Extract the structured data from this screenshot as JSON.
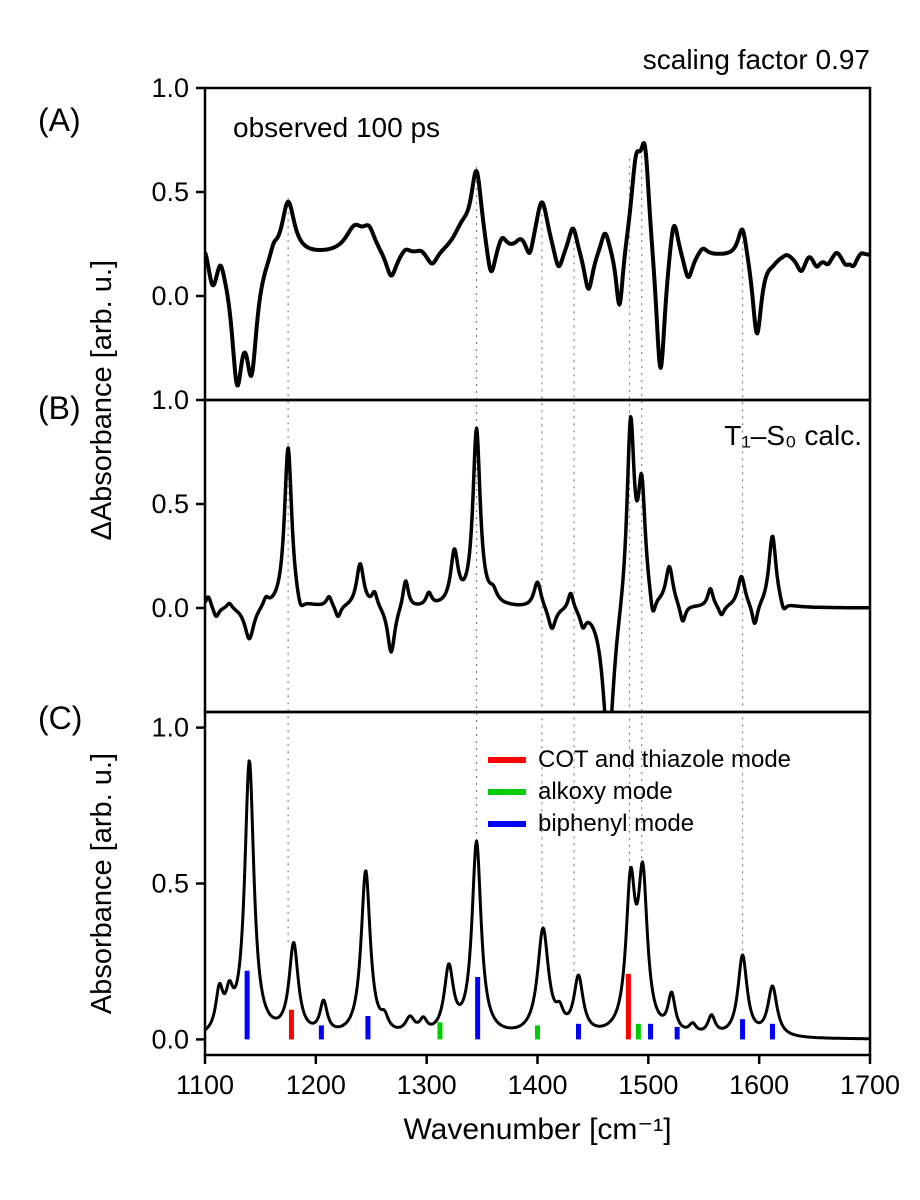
{
  "header": {
    "note": "scaling factor 0.97"
  },
  "chart_data": {
    "type": "line",
    "xlabel": "Wavenumber [cm⁻¹]",
    "ylabel_upper": "ΔAbsorbance [arb. u.]",
    "ylabel_lower": "Absorbance [arb. u.]",
    "x_range": [
      1100,
      1700
    ],
    "x_ticks": [
      1100,
      1200,
      1300,
      1400,
      1500,
      1600,
      1700
    ],
    "colors": {
      "curve": "#000000",
      "red": "#ff0000",
      "green": "#00cc00",
      "blue": "#0000ff",
      "guide": "#808080"
    },
    "guide_lines": [
      {
        "x": 1175,
        "from_a": 0.47,
        "to_c": 0.31
      },
      {
        "x": 1345,
        "from_a": 0.62,
        "to_c": 0.64
      },
      {
        "x": 1404,
        "from_a": 0.46,
        "to_c": 0.36
      },
      {
        "x": 1433,
        "from_a": 0.33,
        "to_c": 0.2
      },
      {
        "x": 1483,
        "from_a": 0.66,
        "to_c": 0.5
      },
      {
        "x": 1494,
        "from_a": 0.74,
        "to_c": 0.52
      },
      {
        "x": 1585,
        "from_a": 0.33,
        "to_c": 0.28
      }
    ],
    "panels": [
      {
        "id": "A",
        "label": "(A)",
        "annotation": "observed 100 ps",
        "ylim": [
          -0.5,
          1.0
        ],
        "y_ticks": [
          0.0,
          0.5,
          1.0
        ],
        "baseline": 0.2,
        "peaks": [
          [
            1100,
            0.08,
            4
          ],
          [
            1107,
            -0.14,
            5
          ],
          [
            1114,
            0.08,
            4
          ],
          [
            1129,
            -0.55,
            6
          ],
          [
            1142,
            -0.5,
            6
          ],
          [
            1162,
            0.05,
            4
          ],
          [
            1175,
            0.27,
            7
          ],
          [
            1235,
            0.12,
            10
          ],
          [
            1248,
            0.1,
            7
          ],
          [
            1268,
            -0.13,
            6
          ],
          [
            1281,
            0.03,
            5
          ],
          [
            1295,
            0.02,
            5
          ],
          [
            1305,
            -0.07,
            6
          ],
          [
            1332,
            0.1,
            10
          ],
          [
            1345,
            0.38,
            6
          ],
          [
            1358,
            -0.18,
            5
          ],
          [
            1368,
            0.07,
            5
          ],
          [
            1385,
            0.05,
            6
          ],
          [
            1393,
            -0.09,
            4
          ],
          [
            1404,
            0.26,
            7
          ],
          [
            1419,
            -0.12,
            5
          ],
          [
            1432,
            0.14,
            5
          ],
          [
            1446,
            -0.2,
            5
          ],
          [
            1461,
            0.12,
            5
          ],
          [
            1474,
            -0.32,
            4
          ],
          [
            1489,
            0.4,
            6
          ],
          [
            1497,
            0.45,
            5
          ],
          [
            1511,
            -0.65,
            5
          ],
          [
            1523,
            0.22,
            5
          ],
          [
            1536,
            -0.13,
            5
          ],
          [
            1549,
            0.04,
            5
          ],
          [
            1585,
            0.17,
            5
          ],
          [
            1598,
            -0.4,
            5
          ],
          [
            1612,
            -0.02,
            5
          ],
          [
            1625,
            0.02,
            5
          ],
          [
            1638,
            -0.08,
            5
          ],
          [
            1645,
            0.03,
            4
          ],
          [
            1652,
            -0.05,
            4
          ],
          [
            1662,
            -0.04,
            4
          ],
          [
            1670,
            0.03,
            4
          ],
          [
            1678,
            -0.04,
            4
          ],
          [
            1685,
            -0.05,
            4
          ],
          [
            1692,
            0.02,
            4
          ]
        ]
      },
      {
        "id": "B",
        "label": "(B)",
        "annotation": "T₁–S₀ calc.",
        "ylim": [
          -0.5,
          1.0
        ],
        "y_ticks": [
          0.0,
          0.5,
          1.0
        ],
        "baseline": 0,
        "peaks": [
          [
            1103,
            0.06,
            3
          ],
          [
            1110,
            -0.05,
            3
          ],
          [
            1122,
            0.03,
            3
          ],
          [
            1140,
            -0.16,
            5
          ],
          [
            1155,
            0.04,
            3
          ],
          [
            1175,
            0.78,
            4
          ],
          [
            1186,
            -0.07,
            4
          ],
          [
            1212,
            0.05,
            3
          ],
          [
            1220,
            -0.06,
            3
          ],
          [
            1240,
            0.21,
            4
          ],
          [
            1253,
            0.07,
            3
          ],
          [
            1268,
            -0.23,
            4
          ],
          [
            1281,
            0.14,
            3
          ],
          [
            1302,
            0.06,
            3
          ],
          [
            1325,
            0.25,
            4
          ],
          [
            1345,
            0.85,
            4
          ],
          [
            1360,
            0.05,
            4
          ],
          [
            1400,
            0.13,
            4
          ],
          [
            1413,
            -0.11,
            4
          ],
          [
            1430,
            0.09,
            3
          ],
          [
            1441,
            -0.07,
            3
          ],
          [
            1464,
            -0.7,
            6
          ],
          [
            1484,
            0.9,
            4
          ],
          [
            1494,
            0.55,
            4
          ],
          [
            1504,
            -0.12,
            3
          ],
          [
            1519,
            0.19,
            4
          ],
          [
            1531,
            -0.09,
            3
          ],
          [
            1556,
            0.09,
            3
          ],
          [
            1566,
            -0.05,
            3
          ],
          [
            1584,
            0.15,
            4
          ],
          [
            1596,
            -0.11,
            3
          ],
          [
            1612,
            0.35,
            4
          ],
          [
            1622,
            -0.05,
            3
          ]
        ]
      },
      {
        "id": "C",
        "label": "(C)",
        "ylim": [
          -0.05,
          1.05
        ],
        "y_ticks": [
          0.0,
          0.5,
          1.0
        ],
        "baseline": 0,
        "peaks": [
          [
            1113,
            0.13,
            4
          ],
          [
            1122,
            0.1,
            4
          ],
          [
            1140,
            0.88,
            5
          ],
          [
            1180,
            0.29,
            5
          ],
          [
            1207,
            0.1,
            4
          ],
          [
            1245,
            0.53,
            5
          ],
          [
            1262,
            0.04,
            4
          ],
          [
            1285,
            0.05,
            5
          ],
          [
            1297,
            0.04,
            4
          ],
          [
            1320,
            0.21,
            5
          ],
          [
            1345,
            0.62,
            5
          ],
          [
            1405,
            0.34,
            6
          ],
          [
            1420,
            0.05,
            4
          ],
          [
            1437,
            0.18,
            5
          ],
          [
            1484,
            0.46,
            5
          ],
          [
            1495,
            0.48,
            5
          ],
          [
            1521,
            0.12,
            4
          ],
          [
            1540,
            0.03,
            4
          ],
          [
            1557,
            0.06,
            4
          ],
          [
            1585,
            0.26,
            5
          ],
          [
            1612,
            0.16,
            5
          ]
        ],
        "sticks": [
          {
            "color_key": "blue",
            "x": 1138,
            "h": 0.22
          },
          {
            "color_key": "blue",
            "x": 1205,
            "h": 0.045
          },
          {
            "color_key": "blue",
            "x": 1247,
            "h": 0.075
          },
          {
            "color_key": "blue",
            "x": 1346,
            "h": 0.2
          },
          {
            "color_key": "blue",
            "x": 1437,
            "h": 0.05
          },
          {
            "color_key": "blue",
            "x": 1502,
            "h": 0.05
          },
          {
            "color_key": "blue",
            "x": 1526,
            "h": 0.04
          },
          {
            "color_key": "blue",
            "x": 1585,
            "h": 0.065
          },
          {
            "color_key": "blue",
            "x": 1612,
            "h": 0.05
          },
          {
            "color_key": "red",
            "x": 1178,
            "h": 0.095
          },
          {
            "color_key": "red",
            "x": 1482,
            "h": 0.21
          },
          {
            "color_key": "green",
            "x": 1312,
            "h": 0.055
          },
          {
            "color_key": "green",
            "x": 1400,
            "h": 0.045
          },
          {
            "color_key": "green",
            "x": 1491,
            "h": 0.05
          }
        ],
        "legend": [
          {
            "color": "#ff0000",
            "label": "COT and thiazole mode"
          },
          {
            "color": "#00cc00",
            "label": "alkoxy mode"
          },
          {
            "color": "#0000ff",
            "label": "biphenyl mode"
          }
        ]
      }
    ]
  }
}
